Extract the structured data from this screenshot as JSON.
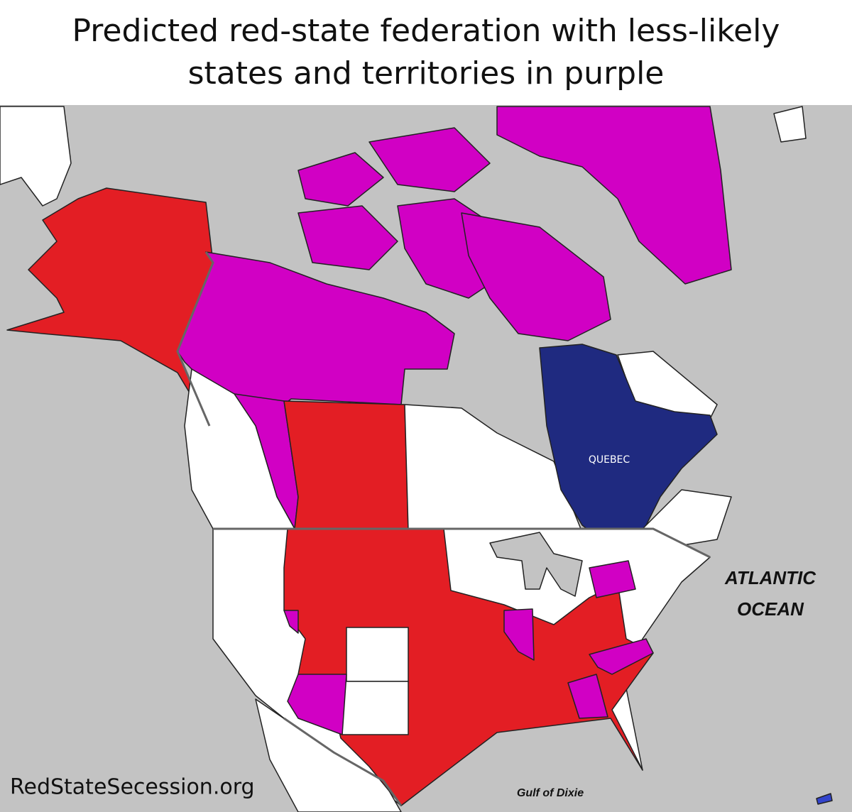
{
  "header": {
    "title_lines": [
      "Predicted red-state federation with less-likely",
      "states and territories in purple"
    ]
  },
  "map": {
    "labels": {
      "quebec": "QUEBEC",
      "ocean": [
        "ATLANTIC",
        "OCEAN"
      ],
      "gulf": "Gulf of Dixie"
    }
  },
  "footer": {
    "watermark": "RedStateSecession.org"
  }
}
